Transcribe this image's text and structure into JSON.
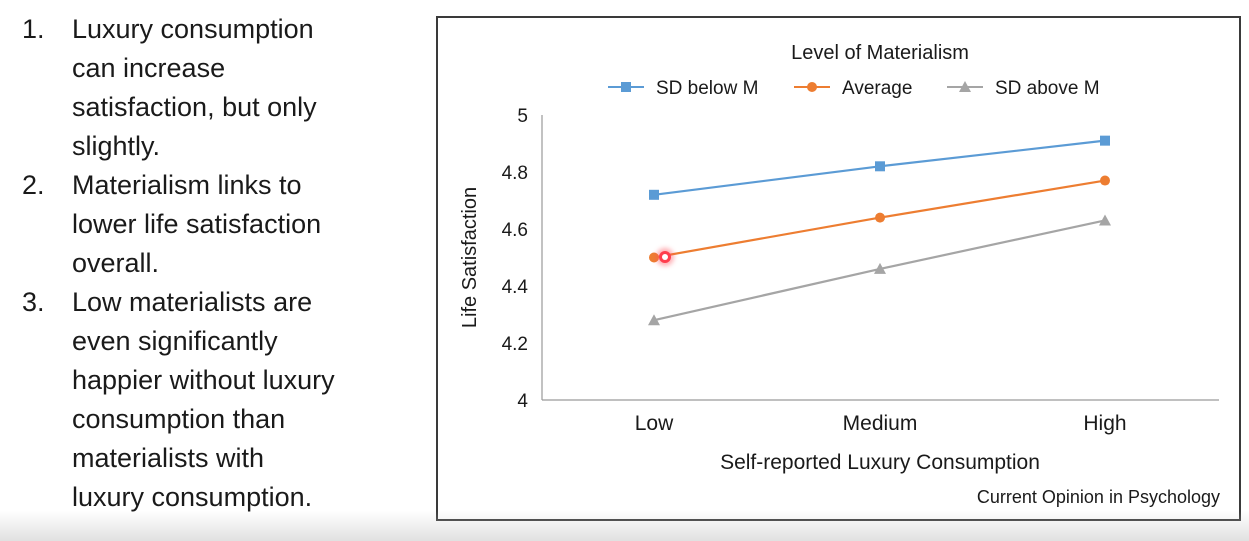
{
  "slide": {
    "points": [
      {
        "num": "1.",
        "lines": [
          "Luxury consumption",
          "can increase",
          "satisfaction, but only",
          "slightly."
        ]
      },
      {
        "num": "2.",
        "lines": [
          "Materialism links to",
          "lower life satisfaction",
          "overall."
        ]
      },
      {
        "num": "3.",
        "lines": [
          "Low materialists are",
          "even significantly",
          "happier without luxury",
          "consumption than",
          "materialists with",
          "luxury consumption."
        ]
      }
    ]
  },
  "chart_data": {
    "type": "line",
    "legend_title": "Level of Materialism",
    "legend_position": "top",
    "categories": [
      "Low",
      "Medium",
      "High"
    ],
    "xlabel": "Self-reported Luxury Consumption",
    "ylabel": "Life Satisfaction",
    "ylim": [
      4,
      5
    ],
    "yticks": [
      4,
      4.2,
      4.4,
      4.6,
      4.8,
      5
    ],
    "ytick_labels": [
      "4",
      "4.2",
      "4.4",
      "4.6",
      "4.8",
      "5"
    ],
    "grid": false,
    "source": "Current Opinion in Psychology",
    "series": [
      {
        "name": "SD below M",
        "values": [
          4.72,
          4.82,
          4.91
        ],
        "color": "#5b9bd5",
        "marker": "square"
      },
      {
        "name": "Average",
        "values": [
          4.5,
          4.64,
          4.77
        ],
        "color": "#ed7d31",
        "marker": "circle"
      },
      {
        "name": "SD above M",
        "values": [
          4.28,
          4.46,
          4.63
        ],
        "color": "#a5a5a5",
        "marker": "triangle"
      }
    ]
  }
}
